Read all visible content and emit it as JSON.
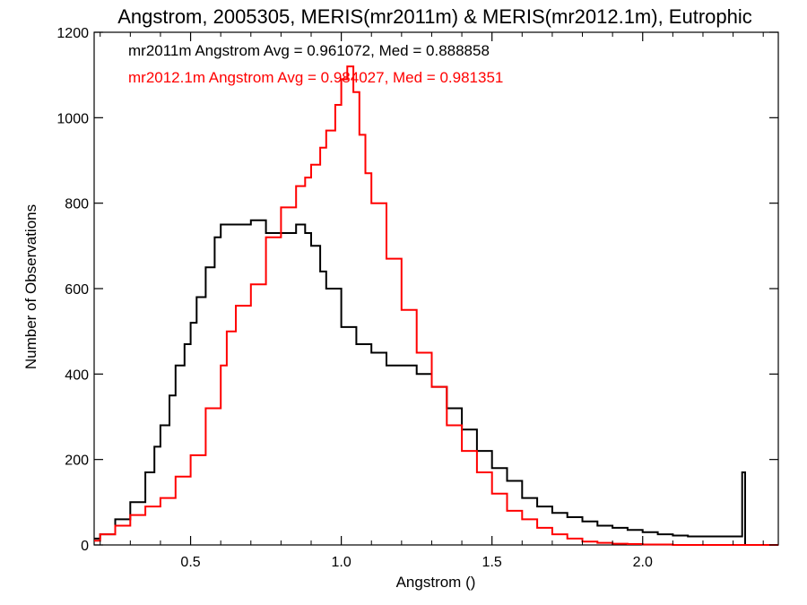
{
  "chart_data": {
    "type": "line",
    "step": true,
    "title": "Angstrom, 2005305, MERIS(mr2011m) & MERIS(mr2012.1m), Eutrophic",
    "xlabel": "Angstrom ()",
    "ylabel": "Number of Observations",
    "xlim": [
      0.18,
      2.45
    ],
    "ylim": [
      0,
      1200
    ],
    "xticks": [
      {
        "value": 0.5,
        "label": "0.5"
      },
      {
        "value": 1.0,
        "label": "1.0"
      },
      {
        "value": 1.5,
        "label": "1.5"
      },
      {
        "value": 2.0,
        "label": "2.0"
      }
    ],
    "yticks": [
      {
        "value": 0,
        "label": "0"
      },
      {
        "value": 200,
        "label": "200"
      },
      {
        "value": 400,
        "label": "400"
      },
      {
        "value": 600,
        "label": "600"
      },
      {
        "value": 800,
        "label": "800"
      },
      {
        "value": 1000,
        "label": "1000"
      },
      {
        "value": 1200,
        "label": "1200"
      }
    ],
    "annotations": [
      {
        "text": "mr2011m Angstrom Avg = 0.961072, Med = 0.888858",
        "color": "#000000"
      },
      {
        "text": "mr2012.1m Angstrom Avg = 0.984027, Med = 0.981351",
        "color": "#ff0000"
      }
    ],
    "series": [
      {
        "color": "#000000",
        "x": [
          0.18,
          0.2,
          0.25,
          0.3,
          0.35,
          0.38,
          0.4,
          0.43,
          0.45,
          0.48,
          0.5,
          0.52,
          0.55,
          0.58,
          0.6,
          0.65,
          0.7,
          0.75,
          0.8,
          0.85,
          0.88,
          0.9,
          0.93,
          0.95,
          1.0,
          1.05,
          1.1,
          1.15,
          1.2,
          1.25,
          1.3,
          1.35,
          1.4,
          1.45,
          1.5,
          1.55,
          1.6,
          1.65,
          1.7,
          1.75,
          1.8,
          1.85,
          1.9,
          1.95,
          2.0,
          2.05,
          2.1,
          2.15,
          2.2,
          2.25,
          2.3,
          2.32,
          2.33,
          2.34
        ],
        "y": [
          15,
          25,
          60,
          100,
          170,
          230,
          280,
          350,
          420,
          470,
          520,
          580,
          650,
          720,
          750,
          750,
          760,
          730,
          730,
          750,
          730,
          700,
          640,
          600,
          510,
          470,
          450,
          420,
          420,
          400,
          370,
          320,
          270,
          220,
          180,
          150,
          110,
          90,
          75,
          65,
          55,
          45,
          40,
          35,
          30,
          25,
          22,
          20,
          20,
          20,
          20,
          20,
          170,
          0
        ]
      },
      {
        "color": "#ff0000",
        "x": [
          0.18,
          0.2,
          0.25,
          0.3,
          0.35,
          0.4,
          0.45,
          0.5,
          0.55,
          0.6,
          0.62,
          0.65,
          0.7,
          0.75,
          0.8,
          0.85,
          0.88,
          0.9,
          0.93,
          0.95,
          0.98,
          1.0,
          1.02,
          1.04,
          1.06,
          1.08,
          1.1,
          1.15,
          1.2,
          1.25,
          1.3,
          1.35,
          1.4,
          1.45,
          1.5,
          1.55,
          1.6,
          1.65,
          1.7,
          1.75,
          1.8,
          1.85,
          1.9,
          1.95,
          2.0,
          2.1,
          2.2,
          2.3,
          2.4,
          2.45
        ],
        "y": [
          10,
          25,
          45,
          70,
          90,
          110,
          160,
          210,
          320,
          420,
          500,
          560,
          610,
          720,
          790,
          840,
          860,
          890,
          930,
          970,
          1030,
          1090,
          1120,
          1060,
          960,
          870,
          800,
          670,
          550,
          450,
          370,
          280,
          220,
          170,
          120,
          80,
          60,
          40,
          25,
          15,
          8,
          5,
          3,
          2,
          1,
          0,
          0,
          0,
          0,
          0
        ]
      }
    ]
  }
}
